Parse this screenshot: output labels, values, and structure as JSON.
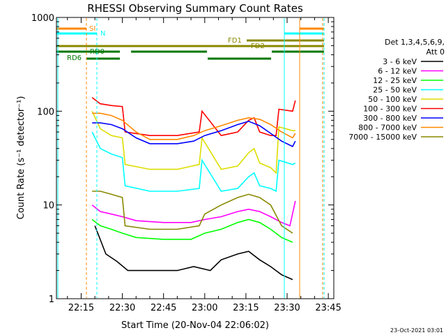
{
  "chart_data": {
    "type": "line",
    "title": "RHESSI Observing Summary Count Rates",
    "xlabel": "Start Time (20-Nov-04 22:06:02)",
    "ylabel": "Count Rate (s⁻¹ detector⁻¹)",
    "ylog": true,
    "ylim": [
      1,
      1000
    ],
    "xlim_minutes": [
      6,
      107
    ],
    "x_ticks": [
      {
        "m": 15,
        "label": "22:15"
      },
      {
        "m": 30,
        "label": "22:30"
      },
      {
        "m": 45,
        "label": "22:45"
      },
      {
        "m": 60,
        "label": "23:00"
      },
      {
        "m": 75,
        "label": "23:15"
      },
      {
        "m": 90,
        "label": "23:30"
      },
      {
        "m": 105,
        "label": "23:45"
      }
    ],
    "y_ticks": [
      {
        "v": 1,
        "label": "1"
      },
      {
        "v": 10,
        "label": "10"
      },
      {
        "v": 100,
        "label": "100"
      },
      {
        "v": 1000,
        "label": "1000"
      }
    ],
    "legend": {
      "header1": "Det 1,3,4,5,6,9,",
      "header2": "Att 0",
      "placement": "right"
    },
    "series": [
      {
        "name": "3 - 6 keV",
        "color": "#000000",
        "x": [
          20,
          24,
          28,
          32,
          40,
          50,
          56,
          62,
          66,
          72,
          76,
          80,
          84,
          88,
          92
        ],
        "values": [
          6,
          3,
          2.5,
          2,
          2,
          2,
          2.2,
          2,
          2.6,
          3,
          3.2,
          2.6,
          2.2,
          1.8,
          1.6
        ]
      },
      {
        "name": "6 - 12 keV",
        "color": "#ff00ff",
        "x": [
          19,
          22,
          26,
          30,
          35,
          45,
          55,
          60,
          66,
          72,
          76,
          80,
          84,
          88,
          91,
          93
        ],
        "values": [
          10,
          8.5,
          8,
          7.5,
          6.8,
          6.5,
          6.5,
          7,
          7.5,
          8.5,
          9,
          8.5,
          7.5,
          6.5,
          6,
          11
        ]
      },
      {
        "name": "12 - 25 keV",
        "color": "#00ff00",
        "x": [
          19,
          22,
          26,
          30,
          35,
          45,
          55,
          60,
          66,
          72,
          76,
          80,
          84,
          88,
          92
        ],
        "values": [
          7,
          6,
          5.5,
          5,
          4.5,
          4.3,
          4.3,
          5,
          5.5,
          6.5,
          7,
          6.5,
          5.5,
          4.5,
          4
        ]
      },
      {
        "name": "25 - 50 keV",
        "color": "#00ffff",
        "x": [
          19,
          22,
          26,
          30,
          31,
          40,
          50,
          58,
          59,
          66,
          72,
          76,
          78,
          80,
          84,
          86,
          87,
          92,
          93
        ],
        "values": [
          60,
          40,
          35,
          32,
          16,
          14,
          14,
          15,
          30,
          14,
          15,
          20,
          22,
          16,
          15,
          14,
          30,
          27,
          28
        ]
      },
      {
        "name": "50 - 100 keV",
        "color": "#dddd00",
        "x": [
          19,
          22,
          26,
          30,
          31,
          40,
          50,
          58,
          59,
          66,
          72,
          76,
          78,
          80,
          84,
          86,
          87,
          92,
          93
        ],
        "values": [
          100,
          65,
          55,
          52,
          27,
          24,
          24,
          27,
          52,
          24,
          26,
          36,
          40,
          28,
          25,
          22,
          68,
          62,
          62
        ]
      },
      {
        "name": "100 - 300 keV",
        "color": "#ff0000",
        "x": [
          19,
          22,
          26,
          30,
          31,
          40,
          50,
          58,
          59,
          66,
          72,
          76,
          78,
          80,
          84,
          86,
          87,
          92,
          93
        ],
        "values": [
          140,
          120,
          115,
          112,
          60,
          55,
          55,
          60,
          100,
          55,
          60,
          80,
          85,
          60,
          55,
          55,
          105,
          100,
          130
        ]
      },
      {
        "name": "300 - 800 keV",
        "color": "#0000ff",
        "x": [
          19,
          22,
          26,
          30,
          35,
          40,
          50,
          56,
          60,
          66,
          72,
          76,
          80,
          84,
          88,
          92,
          93
        ],
        "values": [
          75,
          75,
          72,
          65,
          52,
          45,
          45,
          48,
          55,
          62,
          72,
          78,
          70,
          58,
          48,
          42,
          48
        ]
      },
      {
        "name": "800 - 7000 keV",
        "color": "#ff8800",
        "x": [
          19,
          22,
          26,
          30,
          35,
          40,
          50,
          56,
          60,
          66,
          72,
          76,
          80,
          84,
          88,
          92,
          93
        ],
        "values": [
          95,
          95,
          90,
          80,
          60,
          50,
          50,
          55,
          62,
          70,
          80,
          85,
          82,
          72,
          60,
          52,
          58
        ]
      },
      {
        "name": "7000 - 15000 keV",
        "color": "#888800",
        "x": [
          19,
          22,
          26,
          30,
          31,
          40,
          50,
          58,
          60,
          66,
          72,
          76,
          80,
          84,
          88,
          92
        ],
        "values": [
          14,
          14,
          13,
          12,
          6,
          5.5,
          5.5,
          6,
          8,
          10,
          12,
          13,
          12,
          10,
          6,
          5
        ]
      }
    ],
    "annotations": [
      {
        "label": "SI",
        "color": "#ff8800"
      },
      {
        "label": "N",
        "color": "#00ffff"
      },
      {
        "label": "RD0",
        "color": "#007700"
      },
      {
        "label": "RD6",
        "color": "#007700"
      },
      {
        "label": "FD1",
        "color": "#888800"
      },
      {
        "label": "FD2",
        "color": "#888800"
      }
    ]
  },
  "footer": {
    "timestamp": "23-Oct-2021 03:01"
  }
}
